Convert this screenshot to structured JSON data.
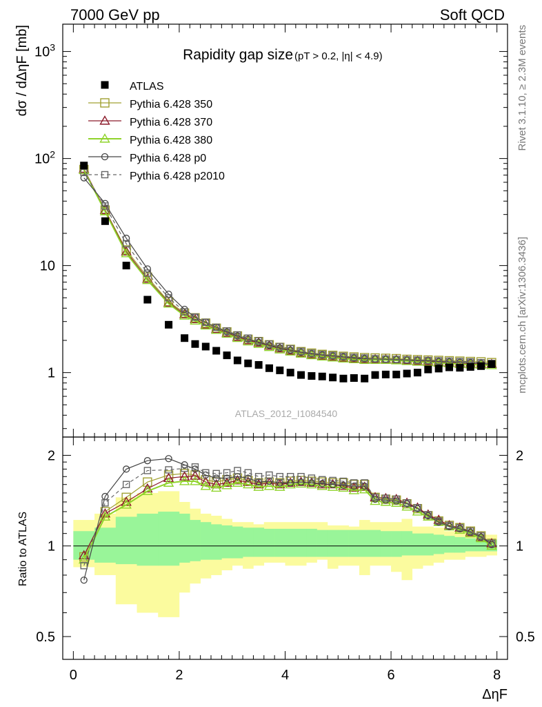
{
  "header": {
    "left": "7000 GeV pp",
    "right": "Soft QCD"
  },
  "side_labels": {
    "rivet": "Rivet 3.1.10, ≥ 2.3M events",
    "mcplots": "mcplots.cern.ch [arXiv:1306.3436]"
  },
  "colors": {
    "ATLAS": "#000000",
    "Pythia 6.428 350": "#a0a030",
    "Pythia 6.428 370": "#8b1a2a",
    "Pythia 6.428 380": "#8fd32a",
    "Pythia 6.428 p0": "#444444",
    "Pythia 6.428 p2010": "#666666",
    "band_inner": "#99f599",
    "band_outer": "#fbfb9e"
  },
  "chart_data": [
    {
      "type": "scatter",
      "title": "Rapidity gap size",
      "subtitle": "(pT > 0.2, |η| < 4.9)",
      "watermark": "ATLAS_2012_I1084540",
      "xlabel": "ΔηF",
      "ylabel": "dσ / dΔηF [mb]",
      "xlim": [
        -0.2,
        8.2
      ],
      "ylim": [
        0.25,
        1800
      ],
      "yscale": "log",
      "y_ticks": [
        "1",
        "10",
        "10^2",
        "10^3"
      ],
      "x_ticks": [
        "0",
        "2",
        "4",
        "6",
        "8"
      ],
      "legend_position": "top-left",
      "x": [
        0.2,
        0.6,
        1.0,
        1.4,
        1.8,
        2.1,
        2.3,
        2.5,
        2.7,
        2.9,
        3.1,
        3.3,
        3.5,
        3.7,
        3.9,
        4.1,
        4.3,
        4.5,
        4.7,
        4.9,
        5.1,
        5.3,
        5.5,
        5.7,
        5.9,
        6.1,
        6.3,
        6.5,
        6.7,
        6.9,
        7.1,
        7.3,
        7.5,
        7.7,
        7.9
      ],
      "series": [
        {
          "name": "ATLAS",
          "marker": "filled-square",
          "values": [
            86,
            26,
            10,
            4.8,
            2.8,
            2.1,
            1.85,
            1.75,
            1.6,
            1.45,
            1.3,
            1.22,
            1.18,
            1.1,
            1.05,
            1.0,
            0.95,
            0.93,
            0.92,
            0.9,
            0.88,
            0.89,
            0.88,
            0.95,
            0.96,
            0.96,
            0.98,
            1.0,
            1.07,
            1.09,
            1.12,
            1.11,
            1.13,
            1.15,
            1.2
          ]
        },
        {
          "name": "Pythia 6.428 350",
          "marker": "open-square",
          "values": [
            79,
            33,
            14,
            7.8,
            4.6,
            3.6,
            3.25,
            2.9,
            2.6,
            2.4,
            2.2,
            2.05,
            1.95,
            1.82,
            1.72,
            1.65,
            1.57,
            1.52,
            1.48,
            1.45,
            1.42,
            1.4,
            1.38,
            1.37,
            1.36,
            1.35,
            1.33,
            1.32,
            1.31,
            1.3,
            1.29,
            1.28,
            1.27,
            1.26,
            1.24
          ]
        },
        {
          "name": "Pythia 6.428 370",
          "marker": "open-triangle",
          "values": [
            80,
            33,
            13.5,
            7.5,
            4.5,
            3.5,
            3.15,
            2.8,
            2.55,
            2.35,
            2.15,
            2.0,
            1.9,
            1.78,
            1.68,
            1.6,
            1.52,
            1.47,
            1.43,
            1.4,
            1.37,
            1.35,
            1.33,
            1.33,
            1.33,
            1.32,
            1.3,
            1.28,
            1.27,
            1.25,
            1.24,
            1.22,
            1.21,
            1.2,
            1.2
          ]
        },
        {
          "name": "Pythia 6.428 380",
          "marker": "open-triangle",
          "values": [
            78,
            32,
            13,
            7.3,
            4.4,
            3.4,
            3.05,
            2.75,
            2.5,
            2.3,
            2.1,
            1.95,
            1.85,
            1.73,
            1.64,
            1.57,
            1.5,
            1.45,
            1.41,
            1.38,
            1.35,
            1.33,
            1.31,
            1.31,
            1.31,
            1.3,
            1.28,
            1.26,
            1.25,
            1.23,
            1.22,
            1.2,
            1.19,
            1.18,
            1.17
          ]
        },
        {
          "name": "Pythia 6.428 p0",
          "marker": "open-circle",
          "values": [
            66,
            38,
            18,
            9.3,
            5.4,
            3.9,
            3.3,
            2.95,
            2.65,
            2.4,
            2.2,
            2.05,
            1.92,
            1.8,
            1.7,
            1.62,
            1.55,
            1.5,
            1.46,
            1.43,
            1.4,
            1.37,
            1.35,
            1.34,
            1.33,
            1.32,
            1.31,
            1.3,
            1.29,
            1.27,
            1.26,
            1.25,
            1.24,
            1.22,
            1.2
          ]
        },
        {
          "name": "Pythia 6.428 p2010",
          "marker": "open-square-dashed",
          "values": [
            74,
            36,
            16,
            8.5,
            5.0,
            3.7,
            3.3,
            2.95,
            2.65,
            2.45,
            2.25,
            2.1,
            1.98,
            1.85,
            1.75,
            1.67,
            1.58,
            1.52,
            1.48,
            1.45,
            1.42,
            1.39,
            1.37,
            1.35,
            1.34,
            1.33,
            1.32,
            1.31,
            1.3,
            1.29,
            1.28,
            1.27,
            1.26,
            1.24,
            1.22
          ]
        }
      ]
    },
    {
      "type": "scatter",
      "ylabel": "Ratio to ATLAS",
      "xlabel": "ΔηF",
      "xlim": [
        -0.2,
        8.2
      ],
      "ylim": [
        0.42,
        2.3
      ],
      "yscale": "log",
      "y_ticks": [
        "0.5",
        "1",
        "2"
      ],
      "x": [
        0.2,
        0.6,
        1.0,
        1.4,
        1.8,
        2.1,
        2.3,
        2.5,
        2.7,
        2.9,
        3.1,
        3.3,
        3.5,
        3.7,
        3.9,
        4.1,
        4.3,
        4.5,
        4.7,
        4.9,
        5.1,
        5.3,
        5.5,
        5.7,
        5.9,
        6.1,
        6.3,
        6.5,
        6.7,
        6.9,
        7.1,
        7.3,
        7.5,
        7.7,
        7.9
      ],
      "band_edges": [
        0.0,
        0.4,
        0.8,
        1.2,
        1.6,
        2.0,
        2.2,
        2.4,
        2.6,
        2.8,
        3.0,
        3.2,
        3.4,
        3.6,
        3.8,
        4.0,
        4.2,
        4.4,
        4.6,
        4.8,
        5.0,
        5.2,
        5.4,
        5.6,
        5.8,
        6.0,
        6.2,
        6.4,
        6.6,
        6.8,
        7.0,
        7.2,
        7.4,
        7.6,
        7.8,
        8.0
      ],
      "band_inner": [
        [
          0.9,
          1.12
        ],
        [
          0.88,
          1.15
        ],
        [
          0.87,
          1.25
        ],
        [
          0.86,
          1.28
        ],
        [
          0.86,
          1.3
        ],
        [
          0.88,
          1.28
        ],
        [
          0.89,
          1.22
        ],
        [
          0.9,
          1.2
        ],
        [
          0.9,
          1.18
        ],
        [
          0.91,
          1.17
        ],
        [
          0.91,
          1.16
        ],
        [
          0.92,
          1.15
        ],
        [
          0.92,
          1.15
        ],
        [
          0.92,
          1.14
        ],
        [
          0.92,
          1.14
        ],
        [
          0.92,
          1.14
        ],
        [
          0.92,
          1.14
        ],
        [
          0.92,
          1.14
        ],
        [
          0.92,
          1.13
        ],
        [
          0.92,
          1.13
        ],
        [
          0.92,
          1.13
        ],
        [
          0.92,
          1.13
        ],
        [
          0.92,
          1.13
        ],
        [
          0.92,
          1.13
        ],
        [
          0.92,
          1.12
        ],
        [
          0.92,
          1.12
        ],
        [
          0.93,
          1.12
        ],
        [
          0.93,
          1.1
        ],
        [
          0.93,
          1.1
        ],
        [
          0.94,
          1.09
        ],
        [
          0.95,
          1.08
        ],
        [
          0.95,
          1.07
        ],
        [
          0.96,
          1.06
        ],
        [
          0.96,
          1.05
        ],
        [
          0.96,
          1.05
        ]
      ],
      "band_outer": [
        [
          0.85,
          1.22
        ],
        [
          0.8,
          1.28
        ],
        [
          0.64,
          1.45
        ],
        [
          0.6,
          1.5
        ],
        [
          0.58,
          1.52
        ],
        [
          0.7,
          1.4
        ],
        [
          0.75,
          1.33
        ],
        [
          0.78,
          1.28
        ],
        [
          0.8,
          1.26
        ],
        [
          0.83,
          1.23
        ],
        [
          0.86,
          1.2
        ],
        [
          0.84,
          1.2
        ],
        [
          0.86,
          1.18
        ],
        [
          0.88,
          1.2
        ],
        [
          0.88,
          1.2
        ],
        [
          0.86,
          1.2
        ],
        [
          0.86,
          1.2
        ],
        [
          0.88,
          1.2
        ],
        [
          0.9,
          1.2
        ],
        [
          0.84,
          1.17
        ],
        [
          0.86,
          1.17
        ],
        [
          0.86,
          1.16
        ],
        [
          0.8,
          1.22
        ],
        [
          0.86,
          1.2
        ],
        [
          0.86,
          1.2
        ],
        [
          0.82,
          1.2
        ],
        [
          0.77,
          1.23
        ],
        [
          0.84,
          1.16
        ],
        [
          0.86,
          1.16
        ],
        [
          0.88,
          1.15
        ],
        [
          0.9,
          1.12
        ],
        [
          0.9,
          1.11
        ],
        [
          0.92,
          1.1
        ],
        [
          0.92,
          1.09
        ],
        [
          0.93,
          1.09
        ]
      ],
      "series": [
        {
          "name": "Pythia 6.428 350",
          "values": [
            0.92,
            1.3,
            1.45,
            1.63,
            1.72,
            1.74,
            1.72,
            1.66,
            1.63,
            1.66,
            1.68,
            1.65,
            1.62,
            1.63,
            1.62,
            1.64,
            1.65,
            1.64,
            1.63,
            1.62,
            1.62,
            1.6,
            1.6,
            1.45,
            1.43,
            1.42,
            1.38,
            1.33,
            1.26,
            1.21,
            1.17,
            1.15,
            1.12,
            1.08,
            1.02
          ]
        },
        {
          "name": "Pythia 6.428 370",
          "values": [
            0.93,
            1.28,
            1.4,
            1.55,
            1.68,
            1.7,
            1.71,
            1.63,
            1.6,
            1.62,
            1.65,
            1.63,
            1.6,
            1.62,
            1.6,
            1.62,
            1.63,
            1.62,
            1.6,
            1.6,
            1.58,
            1.56,
            1.57,
            1.45,
            1.44,
            1.43,
            1.39,
            1.34,
            1.27,
            1.22,
            1.17,
            1.15,
            1.11,
            1.07,
            1.02
          ]
        },
        {
          "name": "Pythia 6.428 380",
          "values": [
            0.9,
            1.25,
            1.37,
            1.52,
            1.62,
            1.64,
            1.64,
            1.58,
            1.56,
            1.59,
            1.62,
            1.6,
            1.57,
            1.58,
            1.57,
            1.6,
            1.61,
            1.6,
            1.58,
            1.57,
            1.56,
            1.53,
            1.54,
            1.41,
            1.4,
            1.39,
            1.35,
            1.3,
            1.25,
            1.2,
            1.16,
            1.13,
            1.1,
            1.06,
            1.0
          ]
        },
        {
          "name": "Pythia 6.428 p0",
          "values": [
            0.77,
            1.46,
            1.8,
            1.92,
            1.95,
            1.86,
            1.8,
            1.72,
            1.68,
            1.68,
            1.7,
            1.68,
            1.63,
            1.64,
            1.62,
            1.62,
            1.63,
            1.62,
            1.61,
            1.6,
            1.59,
            1.58,
            1.58,
            1.43,
            1.42,
            1.41,
            1.38,
            1.33,
            1.26,
            1.2,
            1.16,
            1.14,
            1.11,
            1.07,
            1.01
          ]
        },
        {
          "name": "Pythia 6.428 p2010",
          "values": [
            0.86,
            1.39,
            1.6,
            1.78,
            1.79,
            1.81,
            1.83,
            1.75,
            1.74,
            1.75,
            1.78,
            1.75,
            1.7,
            1.72,
            1.7,
            1.7,
            1.7,
            1.68,
            1.66,
            1.65,
            1.64,
            1.62,
            1.62,
            1.45,
            1.44,
            1.43,
            1.39,
            1.34,
            1.27,
            1.21,
            1.17,
            1.15,
            1.12,
            1.08,
            1.02
          ]
        }
      ]
    }
  ]
}
